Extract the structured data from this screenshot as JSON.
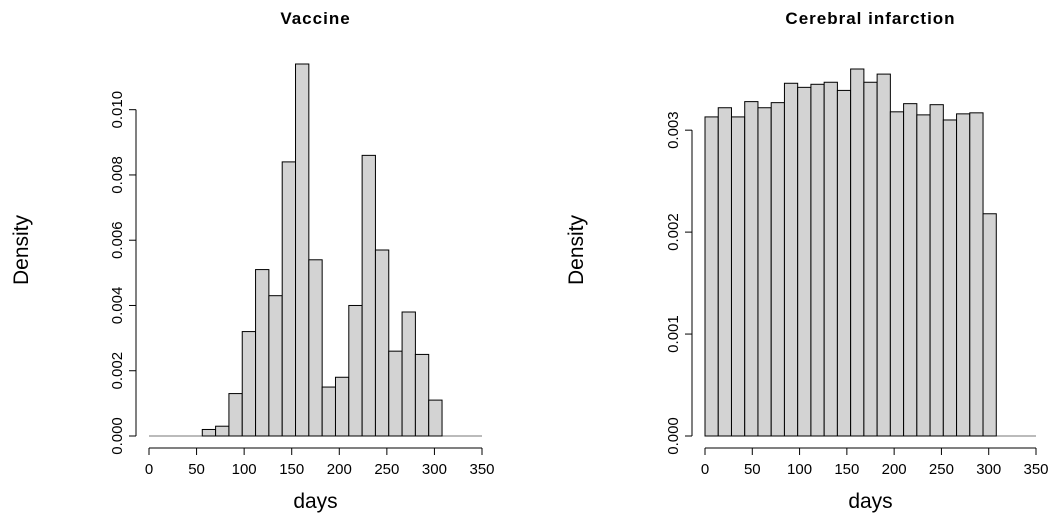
{
  "chart_data": [
    {
      "type": "histogram",
      "title": "Vaccine",
      "xlabel": "days",
      "ylabel": "Density",
      "color": "#d3d3d3",
      "bins": [
        0,
        14,
        28,
        42,
        56,
        70,
        84,
        98,
        112,
        126,
        140,
        154,
        168,
        182,
        196,
        210,
        224,
        238,
        252,
        266,
        280,
        294,
        308
      ],
      "values": [
        0,
        0,
        0,
        0,
        0.0002,
        0.0003,
        0.0013,
        0.0032,
        0.0051,
        0.0043,
        0.0084,
        0.0114,
        0.0054,
        0.0015,
        0.0018,
        0.004,
        0.0086,
        0.0057,
        0.0026,
        0.0038,
        0.0025,
        0.0011
      ],
      "xlim": [
        0,
        350
      ],
      "xticks": [
        0,
        50,
        100,
        150,
        200,
        250,
        300,
        350
      ],
      "ylim": [
        0,
        0.0114
      ],
      "yticks": [
        {
          "value": 0,
          "label": "0.000"
        },
        {
          "value": 0.002,
          "label": "0.002"
        },
        {
          "value": 0.004,
          "label": "0.004"
        },
        {
          "value": 0.006,
          "label": "0.006"
        },
        {
          "value": 0.008,
          "label": "0.008"
        },
        {
          "value": 0.01,
          "label": "0.010"
        }
      ]
    },
    {
      "type": "histogram",
      "title": "Cerebral infarction",
      "xlabel": "days",
      "ylabel": "Density",
      "color": "#d3d3d3",
      "bins": [
        0,
        14,
        28,
        42,
        56,
        70,
        84,
        98,
        112,
        126,
        140,
        154,
        168,
        182,
        196,
        210,
        224,
        238,
        252,
        266,
        280,
        294,
        308
      ],
      "values": [
        0.00313,
        0.00322,
        0.00313,
        0.00328,
        0.00322,
        0.00327,
        0.00346,
        0.00342,
        0.00345,
        0.00347,
        0.00339,
        0.0036,
        0.00347,
        0.00355,
        0.00318,
        0.00326,
        0.00315,
        0.00325,
        0.0031,
        0.00316,
        0.00317,
        0.00218
      ],
      "xlim": [
        0,
        350
      ],
      "xticks": [
        0,
        50,
        100,
        150,
        200,
        250,
        300,
        350
      ],
      "ylim": [
        0,
        0.0036
      ],
      "yticks": [
        {
          "value": 0,
          "label": "0.000"
        },
        {
          "value": 0.001,
          "label": "0.001"
        },
        {
          "value": 0.002,
          "label": "0.002"
        },
        {
          "value": 0.003,
          "label": "0.003"
        }
      ]
    }
  ]
}
